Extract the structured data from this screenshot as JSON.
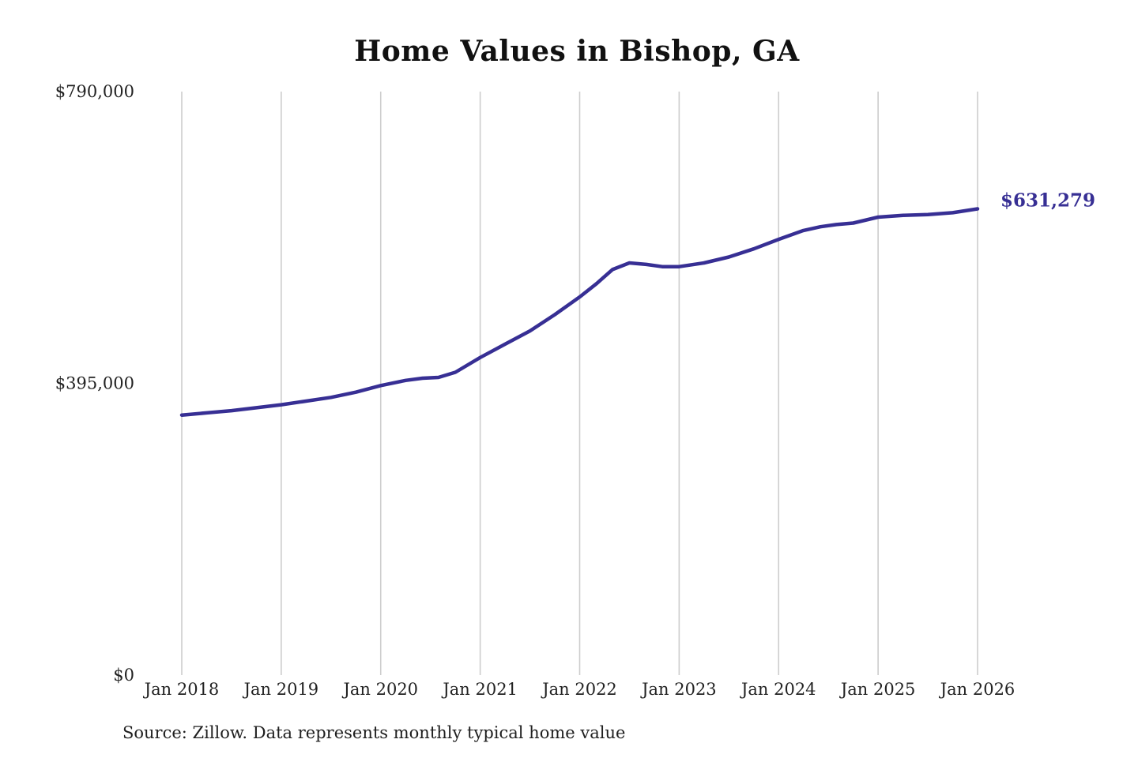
{
  "chart_data": {
    "type": "line",
    "title": "Home Values in Bishop, GA",
    "source_note": "Source: Zillow. Data represents monthly typical home value",
    "line_color": "#372f94",
    "grid_color": "#cdcdcd",
    "axis_text_color": "#222222",
    "grid": "vertical-only",
    "legend": "none",
    "end_label": "$631,279",
    "end_value": 631279,
    "x_range": [
      2018,
      2026
    ],
    "ylim": [
      0,
      790000
    ],
    "y_axis": {
      "max": 790000,
      "ticks": [
        {
          "value": 0,
          "label": "$0"
        },
        {
          "value": 395000,
          "label": "$395,000"
        },
        {
          "value": 790000,
          "label": "$790,000"
        }
      ]
    },
    "x_axis": {
      "ticks": [
        {
          "year": 2018,
          "label": "Jan 2018"
        },
        {
          "year": 2019,
          "label": "Jan 2019"
        },
        {
          "year": 2020,
          "label": "Jan 2020"
        },
        {
          "year": 2021,
          "label": "Jan 2021"
        },
        {
          "year": 2022,
          "label": "Jan 2022"
        },
        {
          "year": 2023,
          "label": "Jan 2023"
        },
        {
          "year": 2024,
          "label": "Jan 2024"
        },
        {
          "year": 2025,
          "label": "Jan 2025"
        },
        {
          "year": 2026,
          "label": "Jan 2026"
        }
      ]
    },
    "points": [
      [
        2018.0,
        352000
      ],
      [
        2018.25,
        355000
      ],
      [
        2018.5,
        358000
      ],
      [
        2018.75,
        362000
      ],
      [
        2019.0,
        366000
      ],
      [
        2019.25,
        371000
      ],
      [
        2019.5,
        376000
      ],
      [
        2019.75,
        383000
      ],
      [
        2020.0,
        392000
      ],
      [
        2020.25,
        399000
      ],
      [
        2020.42,
        402000
      ],
      [
        2020.58,
        403000
      ],
      [
        2020.75,
        410000
      ],
      [
        2021.0,
        430000
      ],
      [
        2021.25,
        448000
      ],
      [
        2021.5,
        466000
      ],
      [
        2021.75,
        488000
      ],
      [
        2022.0,
        512000
      ],
      [
        2022.17,
        530000
      ],
      [
        2022.33,
        549000
      ],
      [
        2022.5,
        558000
      ],
      [
        2022.67,
        556000
      ],
      [
        2022.83,
        553000
      ],
      [
        2023.0,
        553000
      ],
      [
        2023.25,
        558000
      ],
      [
        2023.5,
        566000
      ],
      [
        2023.75,
        577000
      ],
      [
        2024.0,
        590000
      ],
      [
        2024.25,
        602000
      ],
      [
        2024.42,
        607000
      ],
      [
        2024.58,
        610000
      ],
      [
        2024.75,
        612000
      ],
      [
        2025.0,
        620000
      ],
      [
        2025.25,
        622500
      ],
      [
        2025.5,
        623500
      ],
      [
        2025.75,
        626000
      ],
      [
        2026.0,
        631279
      ]
    ]
  }
}
